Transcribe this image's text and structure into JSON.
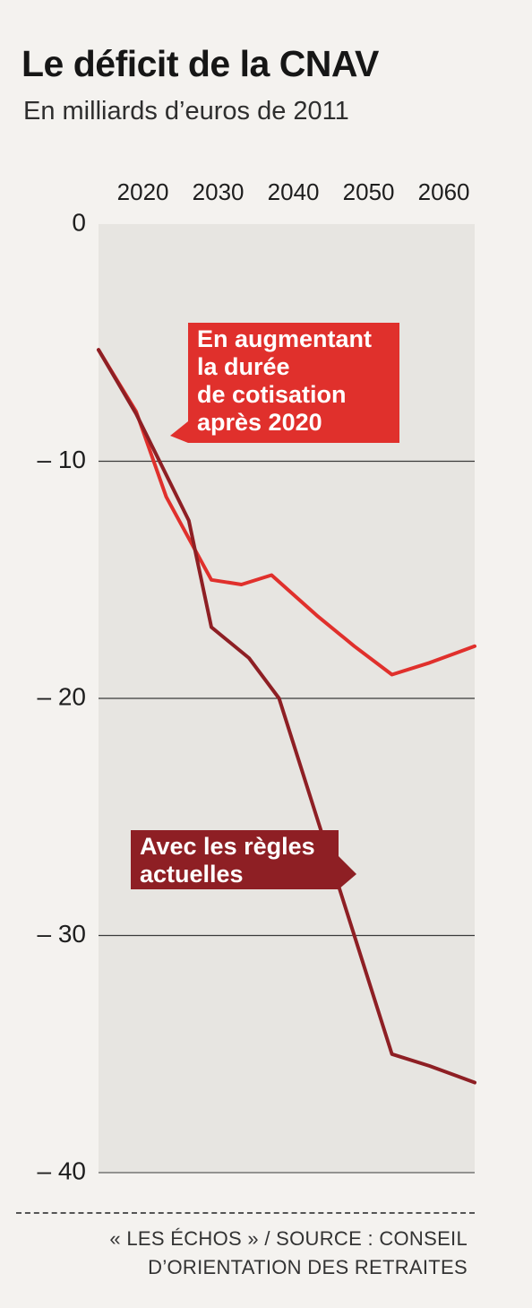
{
  "header": {
    "title": "Le déficit de la CNAV",
    "subtitle": "En milliards d’euros de 2011"
  },
  "chart_data": {
    "type": "line",
    "title": "Le déficit de la CNAV",
    "subtitle": "En milliards d’euros de 2011",
    "xlabel": "",
    "ylabel": "",
    "x_axis_position": "top",
    "x_ticks": [
      2020,
      2030,
      2040,
      2050,
      2060
    ],
    "y_ticks": [
      0,
      -10,
      -20,
      -30,
      -40
    ],
    "y_tick_labels": [
      "0",
      "– 10",
      "– 20",
      "– 30",
      "– 40"
    ],
    "xlim": [
      2016,
      2066
    ],
    "ylim": [
      -40,
      0
    ],
    "grid": "horizontal",
    "series": [
      {
        "name": "En augmentant la durée de cotisation après 2020",
        "label_lines": [
          "En augmentant",
          "la durée",
          "de cotisation",
          "après 2020"
        ],
        "color": "#e0302c",
        "x": [
          2016,
          2021,
          2025,
          2031,
          2035,
          2039,
          2045,
          2050,
          2055,
          2060,
          2066
        ],
        "y": [
          -5.3,
          -7.9,
          -11.5,
          -15,
          -15.2,
          -14.8,
          -16.5,
          -17.8,
          -19,
          -18.5,
          -17.8
        ]
      },
      {
        "name": "Avec les règles actuelles",
        "label_lines": [
          "Avec les règles",
          "actuelles"
        ],
        "color": "#8e1f24",
        "x": [
          2016,
          2021,
          2028,
          2031,
          2036,
          2040,
          2045,
          2050,
          2055,
          2060,
          2066
        ],
        "y": [
          -5.3,
          -8,
          -12.5,
          -17,
          -18.3,
          -20,
          -25,
          -30,
          -35,
          -35.5,
          -36.2
        ]
      }
    ]
  },
  "colors": {
    "plot_background": "#e7e5e1",
    "gridline": "#3a3a3a",
    "line_augmentant": "#e0302c",
    "line_actuelles": "#8e1f24"
  },
  "footer": {
    "source_line1": "« LES ÉCHOS » / SOURCE : CONSEIL",
    "source_line2": "D’ORIENTATION DES RETRAITES"
  }
}
